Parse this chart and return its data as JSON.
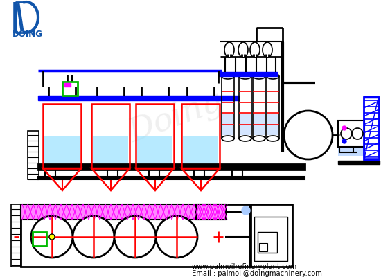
{
  "bg": "#ffffff",
  "BLACK": "#000000",
  "RED": "#ff0000",
  "BLUE": "#0000ff",
  "GREEN": "#00bb00",
  "MAGENTA": "#ff00ff",
  "CYAN": "#88ddff",
  "LBLUE": "#aaccff",
  "DBLUE": "#1155aa",
  "PINK": "#ff88ff",
  "PURPLE": "#8844aa",
  "website": "www.palmoilrefineryplant.com",
  "email": "Email : palmoil@doingmachinery.com"
}
